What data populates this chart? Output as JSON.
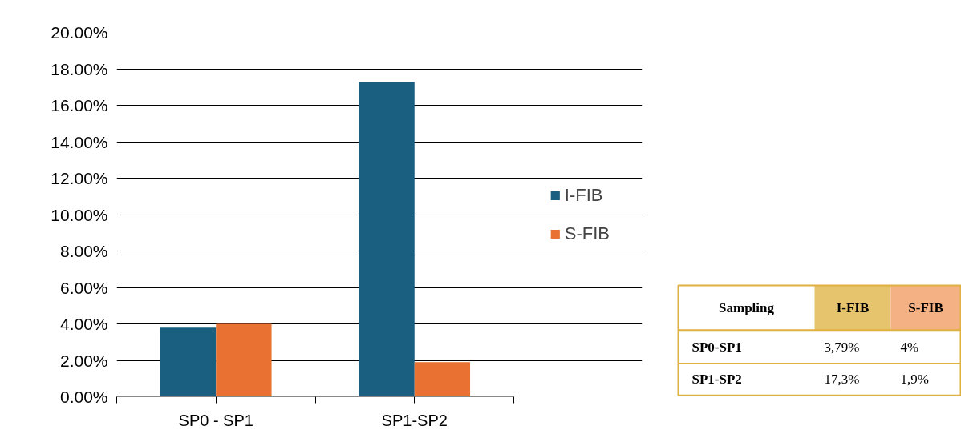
{
  "chart_data": {
    "type": "bar",
    "categories": [
      "SP0 - SP1",
      "SP1-SP2"
    ],
    "series": [
      {
        "name": "I-FIB",
        "color": "#1a5e80",
        "values": [
          3.79,
          17.3
        ]
      },
      {
        "name": "S-FIB",
        "color": "#e97131",
        "values": [
          4,
          1.9
        ]
      }
    ],
    "ylim": [
      0,
      20
    ],
    "yticks": [
      {
        "value": 0,
        "label": "0.00%"
      },
      {
        "value": 2,
        "label": "2.00%"
      },
      {
        "value": 4,
        "label": "4.00%"
      },
      {
        "value": 6,
        "label": "6.00%"
      },
      {
        "value": 8,
        "label": "8.00%"
      },
      {
        "value": 10,
        "label": "10.00%"
      },
      {
        "value": 12,
        "label": "12.00%"
      },
      {
        "value": 14,
        "label": "14.00%"
      },
      {
        "value": 16,
        "label": "16.00%"
      },
      {
        "value": 18,
        "label": "18.00%"
      },
      {
        "value": 20,
        "label": "20.00%"
      }
    ],
    "grid": "y",
    "legend": "right",
    "annotations": [
      "Sampling",
      "SP0-SP1",
      "3,79%",
      "4%",
      "SP1-SP2",
      "17,3%",
      "1,9%"
    ]
  }
}
